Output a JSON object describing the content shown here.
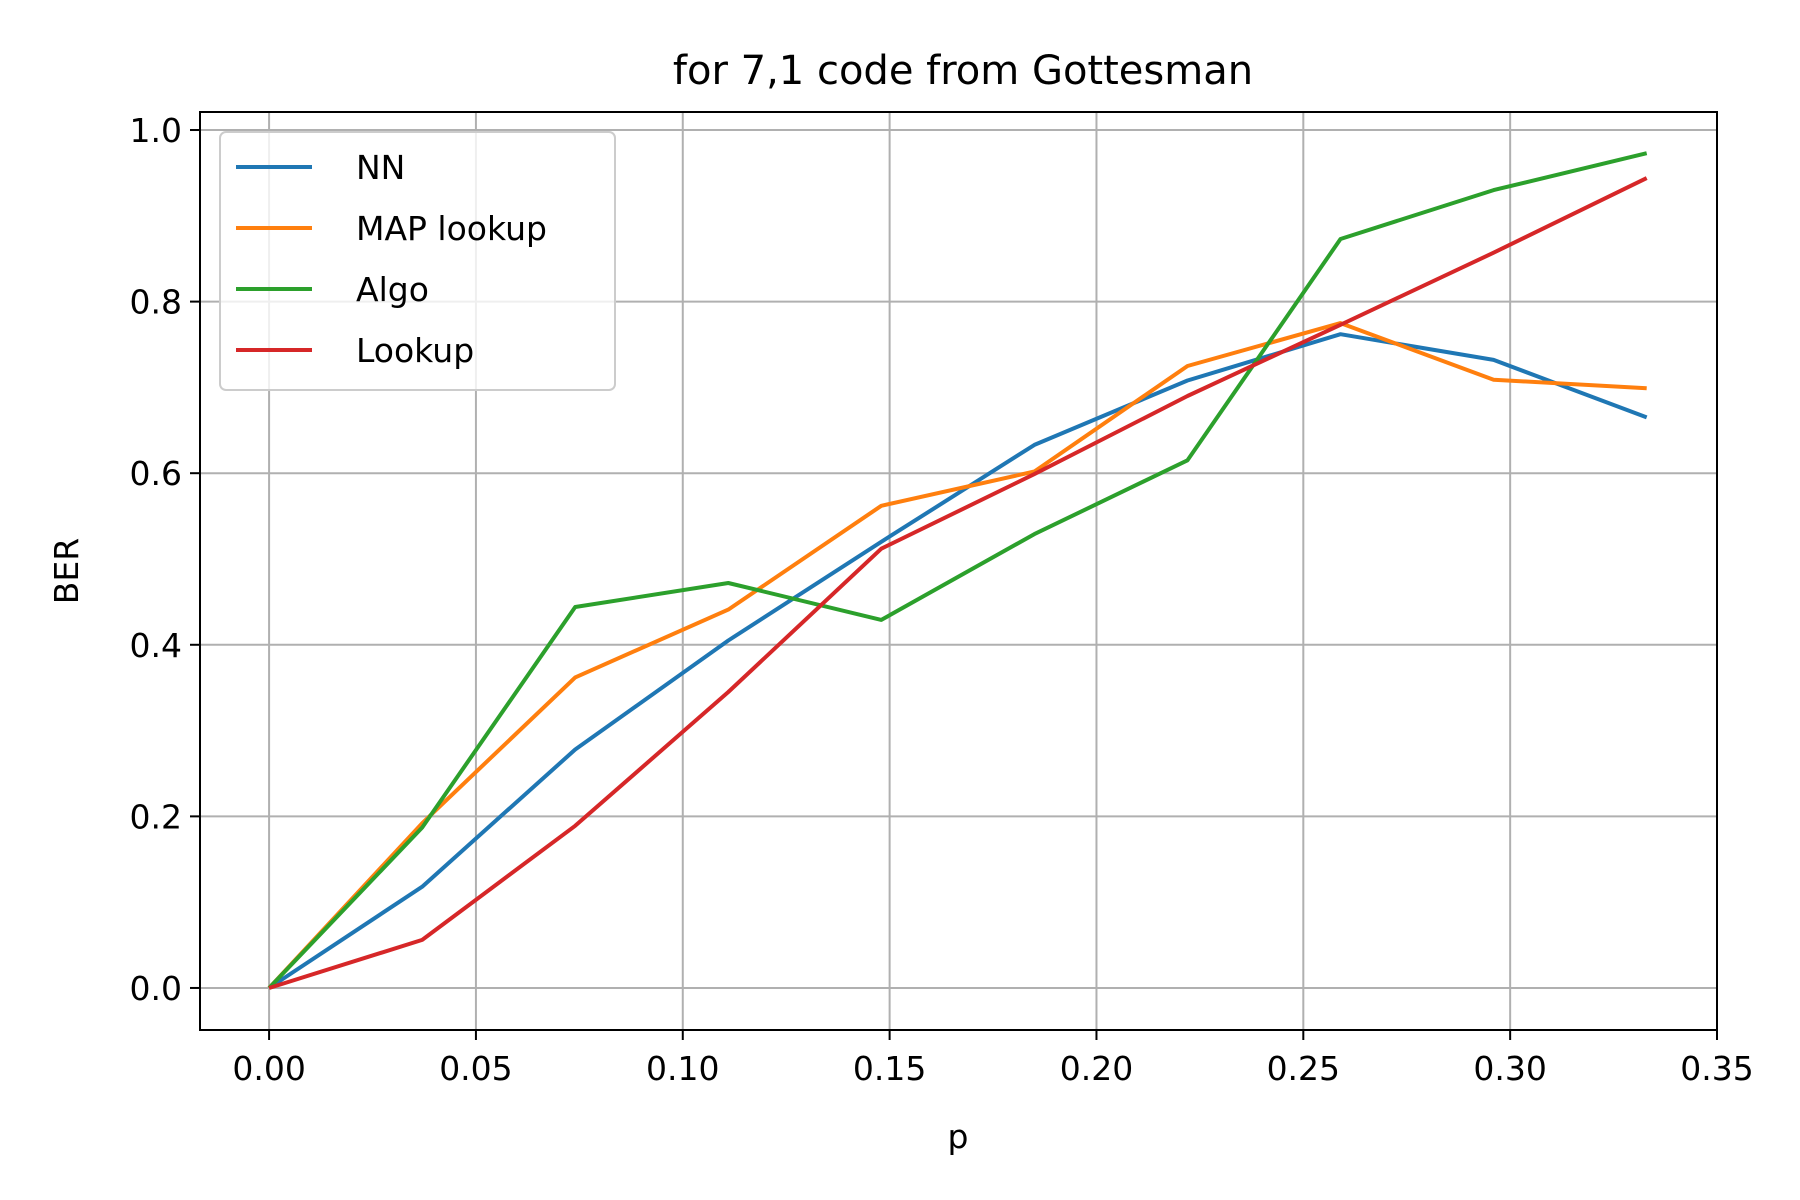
{
  "chart_data": {
    "type": "line",
    "title": "for 7,1 code from Gottesman",
    "xlabel": "p",
    "ylabel": "BER",
    "xlim": [
      -0.0167,
      0.35
    ],
    "ylim": [
      -0.049,
      1.021
    ],
    "xticks": [
      0.0,
      0.05,
      0.1,
      0.15,
      0.2,
      0.25,
      0.3,
      0.35
    ],
    "xtick_labels": [
      "0.00",
      "0.05",
      "0.10",
      "0.15",
      "0.20",
      "0.25",
      "0.30",
      "0.35"
    ],
    "yticks": [
      0.0,
      0.2,
      0.4,
      0.6,
      0.8,
      1.0
    ],
    "ytick_labels": [
      "0.0",
      "0.2",
      "0.4",
      "0.6",
      "0.8",
      "1.0"
    ],
    "grid": true,
    "legend_position": "upper-left",
    "x": [
      0.0,
      0.037,
      0.074,
      0.111,
      0.148,
      0.185,
      0.222,
      0.259,
      0.296,
      0.333
    ],
    "series": [
      {
        "name": "NN",
        "color": "#1f77b4",
        "values": [
          0.0,
          0.118,
          0.278,
          0.405,
          0.52,
          0.633,
          0.708,
          0.762,
          0.732,
          0.665
        ]
      },
      {
        "name": "MAP lookup",
        "color": "#ff7f0e",
        "values": [
          0.0,
          0.192,
          0.362,
          0.441,
          0.562,
          0.602,
          0.725,
          0.775,
          0.709,
          0.699
        ]
      },
      {
        "name": "Algo",
        "color": "#2ca02c",
        "values": [
          0.0,
          0.187,
          0.444,
          0.472,
          0.429,
          0.529,
          0.615,
          0.873,
          0.93,
          0.973
        ]
      },
      {
        "name": "Lookup",
        "color": "#d62728",
        "values": [
          0.0,
          0.056,
          0.189,
          0.345,
          0.512,
          0.599,
          0.69,
          0.773,
          0.857,
          0.944
        ]
      }
    ]
  }
}
